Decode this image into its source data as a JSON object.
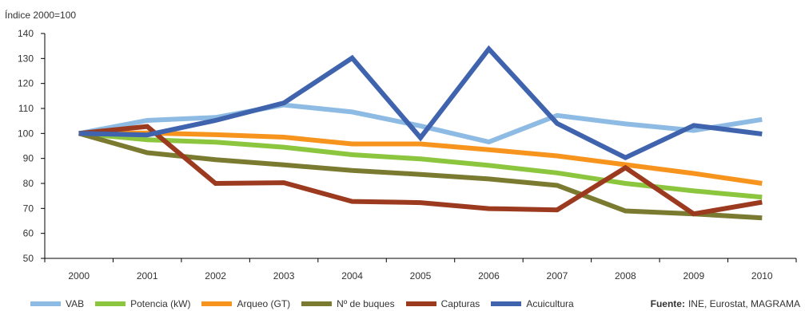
{
  "chart_data": {
    "type": "line",
    "ylabel": "Índice 2000=100",
    "xlabel": "",
    "ylim": [
      50,
      140
    ],
    "yticks": [
      50,
      60,
      70,
      80,
      90,
      100,
      110,
      120,
      130,
      140
    ],
    "categories": [
      "2000",
      "2001",
      "2002",
      "2003",
      "2004",
      "2005",
      "2006",
      "2007",
      "2008",
      "2009",
      "2010"
    ],
    "series": [
      {
        "name": "VAB",
        "color": "#8dbbe3",
        "values": [
          100,
          105.2,
          106.4,
          111.4,
          108.6,
          103,
          96.6,
          107.2,
          103.8,
          101.2,
          105.6
        ]
      },
      {
        "name": "Potencia (kW)",
        "color": "#8cc63f",
        "values": [
          100,
          97.5,
          96.5,
          94.5,
          91.5,
          89.8,
          87.2,
          84.2,
          80,
          77,
          74.5
        ]
      },
      {
        "name": "Arqueo (GT)",
        "color": "#f7941d",
        "values": [
          100,
          100.2,
          99.5,
          98.5,
          95.8,
          95.8,
          93.5,
          91,
          87.5,
          84,
          80
        ]
      },
      {
        "name": "Nº de buques",
        "color": "#7a7a30",
        "values": [
          100,
          92.3,
          89.5,
          87.4,
          85.2,
          83.6,
          81.8,
          79.2,
          69,
          67.8,
          66.2
        ]
      },
      {
        "name": "Capturas",
        "color": "#9b3a1f",
        "values": [
          100,
          102.8,
          80,
          80.3,
          72.8,
          72.3,
          69.9,
          69.4,
          86.3,
          67.8,
          72.5
        ]
      },
      {
        "name": "Acuicultura",
        "color": "#3f63ad",
        "values": [
          100,
          99.4,
          105.2,
          112.2,
          130.2,
          98.3,
          133.8,
          104,
          90.3,
          103.2,
          99.8
        ]
      }
    ],
    "grid": false,
    "legend_position": "bottom"
  },
  "source": {
    "label": "Fuente:",
    "text": "INE, Eurostat, MAGRAMA"
  }
}
